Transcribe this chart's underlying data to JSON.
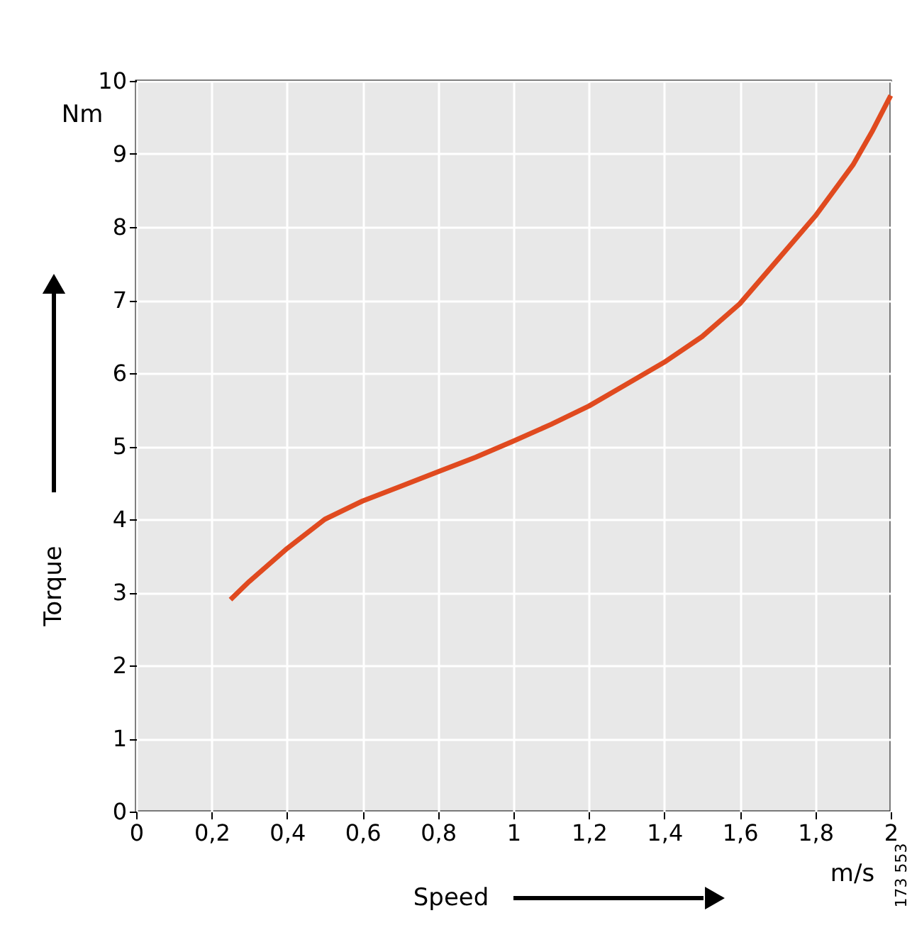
{
  "chart_data": {
    "type": "line",
    "xlabel": "Speed",
    "ylabel": "Torque",
    "x": [
      0.25,
      0.3,
      0.4,
      0.5,
      0.6,
      0.7,
      0.8,
      0.9,
      1.0,
      1.1,
      1.2,
      1.3,
      1.4,
      1.5,
      1.6,
      1.7,
      1.8,
      1.9,
      1.95,
      2.0
    ],
    "series": [
      {
        "color": "#e04a1f",
        "values": [
          2.9,
          3.15,
          3.6,
          4.0,
          4.25,
          4.45,
          4.65,
          4.85,
          5.07,
          5.3,
          5.55,
          5.85,
          6.15,
          6.5,
          6.95,
          7.55,
          8.15,
          8.85,
          9.3,
          9.8
        ]
      }
    ],
    "xlim": [
      0,
      2
    ],
    "ylim": [
      0,
      10
    ],
    "xticks": [
      0,
      {
        "value": 0.2,
        "label": "0,2"
      },
      {
        "value": 0.4,
        "label": "0,4"
      },
      {
        "value": 0.6,
        "label": "0,6"
      },
      {
        "value": 0.8,
        "label": "0,8"
      },
      1,
      {
        "value": 1.2,
        "label": "1,2"
      },
      {
        "value": 1.4,
        "label": "1,4"
      },
      {
        "value": 1.6,
        "label": "1,6"
      },
      {
        "value": 1.8,
        "label": "1,8"
      },
      2
    ],
    "yticks": [
      0,
      1,
      2,
      3,
      4,
      5,
      6,
      7,
      8,
      9,
      10
    ],
    "annotations": [
      "Nm",
      "m/s",
      "173 553"
    ],
    "grid": true,
    "marker": "none",
    "line_style": "solid"
  }
}
